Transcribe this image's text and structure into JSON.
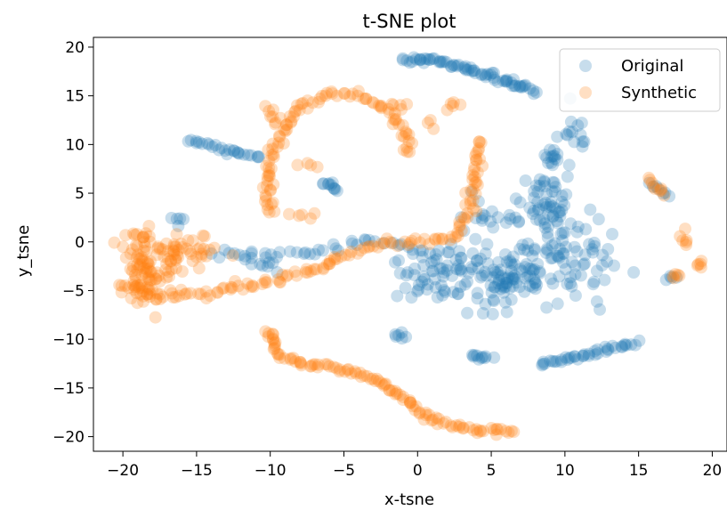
{
  "chart_data": {
    "type": "scatter",
    "title": "t-SNE plot",
    "xlabel": "x-tsne",
    "ylabel": "y_tsne",
    "xlim": [
      -22,
      21
    ],
    "ylim": [
      -21.5,
      21
    ],
    "xticks": [
      -20,
      -15,
      -10,
      -5,
      0,
      5,
      10,
      15,
      20
    ],
    "yticks": [
      20,
      15,
      10,
      5,
      0,
      -5,
      -10,
      -15,
      -20
    ],
    "xtick_labels": [
      "−20",
      "−15",
      "−10",
      "−5",
      "0",
      "5",
      "10",
      "15",
      "20"
    ],
    "ytick_labels": [
      "20",
      "15",
      "10",
      "5",
      "0",
      "−5",
      "−10",
      "−15",
      "−20"
    ],
    "grid": false,
    "legend_position": "top-right",
    "series": [
      {
        "name": "Original",
        "color": "#1f77b4",
        "alpha": 0.25,
        "clusters": [
          {
            "kind": "curve",
            "points": [
              [
                -1.0,
                18.8
              ],
              [
                1.5,
                18.5
              ],
              [
                3.0,
                17.8
              ],
              [
                5.0,
                17.0
              ],
              [
                6.5,
                16.2
              ],
              [
                8.0,
                15.5
              ]
            ],
            "n": 70,
            "spread": 0.35
          },
          {
            "kind": "curve",
            "points": [
              [
                -15.5,
                10.5
              ],
              [
                -13.5,
                9.5
              ],
              [
                -12.0,
                9.0
              ],
              [
                -10.5,
                8.8
              ]
            ],
            "n": 26,
            "spread": 0.3
          },
          {
            "kind": "curve",
            "points": [
              [
                -6.5,
                6.2
              ],
              [
                -5.3,
                5.3
              ]
            ],
            "n": 10,
            "spread": 0.25
          },
          {
            "kind": "blob",
            "center": [
              10.8,
              11.5
            ],
            "sd": [
              0.5,
              1.0
            ],
            "n": 14
          },
          {
            "kind": "blob",
            "center": [
              9.0,
              8.8
            ],
            "sd": [
              0.5,
              0.6
            ],
            "n": 14
          },
          {
            "kind": "blob",
            "center": [
              9.0,
              4.0
            ],
            "sd": [
              0.9,
              1.6
            ],
            "n": 40
          },
          {
            "kind": "blob",
            "center": [
              9.8,
              -0.5
            ],
            "sd": [
              1.8,
              2.6
            ],
            "n": 90
          },
          {
            "kind": "blob",
            "center": [
              6.0,
              -3.8
            ],
            "sd": [
              1.7,
              1.4
            ],
            "n": 75
          },
          {
            "kind": "blob",
            "center": [
              2.0,
              -3.2
            ],
            "sd": [
              2.0,
              1.6
            ],
            "n": 65
          },
          {
            "kind": "blob",
            "center": [
              4.5,
              2.5
            ],
            "sd": [
              1.3,
              1.5
            ],
            "n": 20
          },
          {
            "kind": "curve",
            "points": [
              [
                -14.0,
                -1.2
              ],
              [
                -10.0,
                -1.2
              ],
              [
                -7.0,
                -1.1
              ],
              [
                -3.0,
                0.3
              ],
              [
                0.0,
                -0.8
              ],
              [
                3.0,
                -1.5
              ]
            ],
            "n": 45,
            "spread": 0.45
          },
          {
            "kind": "curve",
            "points": [
              [
                -12.0,
                -1.5
              ],
              [
                -9.5,
                -3.0
              ]
            ],
            "n": 10,
            "spread": 0.4
          },
          {
            "kind": "blob",
            "center": [
              -16.3,
              2.3
            ],
            "sd": [
              0.25,
              0.25
            ],
            "n": 5
          },
          {
            "kind": "blob",
            "center": [
              -1.0,
              -9.5
            ],
            "sd": [
              0.3,
              0.3
            ],
            "n": 6
          },
          {
            "kind": "curve",
            "points": [
              [
                3.5,
                -11.7
              ],
              [
                5.0,
                -11.9
              ]
            ],
            "n": 10,
            "spread": 0.2
          },
          {
            "kind": "curve",
            "points": [
              [
                8.2,
                -12.5
              ],
              [
                10.5,
                -12.0
              ],
              [
                13.0,
                -11.0
              ],
              [
                14.8,
                -10.3
              ]
            ],
            "n": 40,
            "spread": 0.3
          },
          {
            "kind": "curve",
            "points": [
              [
                15.8,
                6.2
              ],
              [
                17.0,
                4.5
              ]
            ],
            "n": 7,
            "spread": 0.25
          },
          {
            "kind": "blob",
            "center": [
              17.3,
              -3.6
            ],
            "sd": [
              0.4,
              0.3
            ],
            "n": 4
          }
        ]
      },
      {
        "name": "Synthetic",
        "color": "#ff7f0e",
        "alpha": 0.25,
        "clusters": [
          {
            "kind": "curve",
            "points": [
              [
                -10.0,
                2.8
              ],
              [
                -10.2,
                7.0
              ],
              [
                -9.3,
                11.0
              ],
              [
                -8.0,
                14.0
              ],
              [
                -6.0,
                15.3
              ],
              [
                -4.0,
                15.2
              ],
              [
                -2.0,
                13.5
              ],
              [
                -0.8,
                11.0
              ],
              [
                -0.5,
                9.0
              ]
            ],
            "n": 95,
            "spread": 0.35
          },
          {
            "kind": "curve",
            "points": [
              [
                -9.5,
                12.0
              ],
              [
                -10.2,
                14.0
              ]
            ],
            "n": 8,
            "spread": 0.3
          },
          {
            "kind": "blob",
            "center": [
              -7.8,
              2.6
            ],
            "sd": [
              0.4,
              0.3
            ],
            "n": 5
          },
          {
            "kind": "blob",
            "center": [
              -7.5,
              7.8
            ],
            "sd": [
              0.5,
              0.3
            ],
            "n": 4
          },
          {
            "kind": "blob",
            "center": [
              -1.5,
              14.0
            ],
            "sd": [
              0.5,
              0.4
            ],
            "n": 5
          },
          {
            "kind": "curve",
            "points": [
              [
                4.2,
                10.5
              ],
              [
                4.0,
                7.0
              ],
              [
                3.6,
                3.5
              ],
              [
                2.6,
                0.8
              ],
              [
                1.0,
                0.0
              ],
              [
                -2.0,
                0.0
              ],
              [
                -4.5,
                -1.0
              ]
            ],
            "n": 70,
            "spread": 0.35
          },
          {
            "kind": "blob",
            "center": [
              2.7,
              13.8
            ],
            "sd": [
              0.3,
              0.3
            ],
            "n": 5
          },
          {
            "kind": "blob",
            "center": [
              0.8,
              12.0
            ],
            "sd": [
              0.3,
              0.3
            ],
            "n": 3
          },
          {
            "kind": "curve",
            "points": [
              [
                -4.5,
                -1.0
              ],
              [
                -7.0,
                -2.8
              ],
              [
                -10.0,
                -4.2
              ],
              [
                -13.0,
                -4.8
              ],
              [
                -15.5,
                -5.5
              ],
              [
                -18.0,
                -5.5
              ],
              [
                -20.0,
                -4.5
              ]
            ],
            "n": 70,
            "spread": 0.45
          },
          {
            "kind": "blob",
            "center": [
              -18.5,
              -3.2
            ],
            "sd": [
              1.0,
              1.8
            ],
            "n": 85
          },
          {
            "kind": "blob",
            "center": [
              -15.5,
              -0.7
            ],
            "sd": [
              1.5,
              0.7
            ],
            "n": 40
          },
          {
            "kind": "blob",
            "center": [
              -19.0,
              0.3
            ],
            "sd": [
              0.5,
              0.4
            ],
            "n": 10
          },
          {
            "kind": "curve",
            "points": [
              [
                -10.0,
                -9.0
              ],
              [
                -9.5,
                -11.5
              ],
              [
                -8.0,
                -12.5
              ],
              [
                -5.5,
                -13.0
              ],
              [
                -3.0,
                -14.0
              ],
              [
                -1.0,
                -16.0
              ],
              [
                1.0,
                -18.2
              ],
              [
                3.5,
                -19.2
              ],
              [
                6.6,
                -19.5
              ]
            ],
            "n": 110,
            "spread": 0.3
          },
          {
            "kind": "curve",
            "points": [
              [
                15.6,
                6.5
              ],
              [
                16.9,
                4.8
              ]
            ],
            "n": 9,
            "spread": 0.25
          },
          {
            "kind": "blob",
            "center": [
              18.2,
              0.3
            ],
            "sd": [
              0.2,
              0.4
            ],
            "n": 6
          },
          {
            "kind": "blob",
            "center": [
              17.8,
              -3.5
            ],
            "sd": [
              0.3,
              0.25
            ],
            "n": 5
          },
          {
            "kind": "blob",
            "center": [
              19.0,
              -2.4
            ],
            "sd": [
              0.2,
              0.3
            ],
            "n": 5
          }
        ]
      }
    ]
  }
}
